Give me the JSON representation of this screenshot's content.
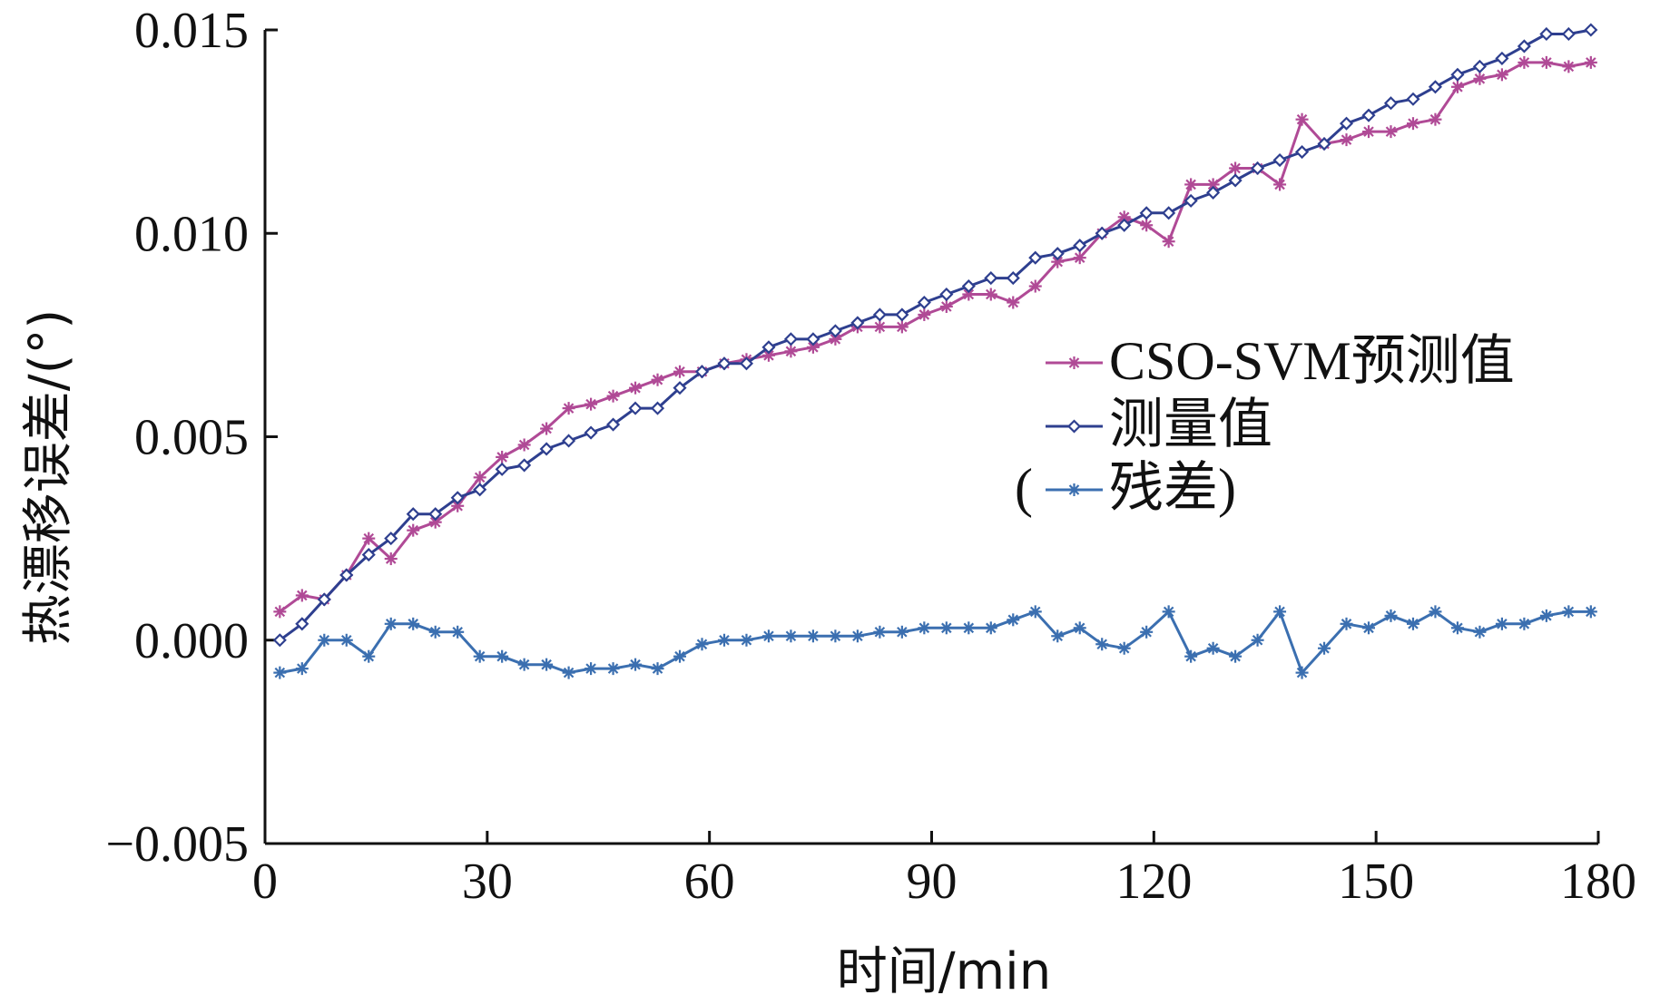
{
  "chart_data": {
    "type": "line",
    "title": "",
    "xlabel": "时间/min",
    "ylabel": "热漂移误差/(°)",
    "xlim": [
      0,
      180
    ],
    "ylim": [
      -0.005,
      0.015
    ],
    "xticks": [
      0,
      30,
      60,
      90,
      120,
      150,
      180
    ],
    "xtick_labels": [
      "0",
      "30",
      "60",
      "90",
      "120",
      "150",
      "180"
    ],
    "yticks": [
      -0.005,
      0.0,
      0.005,
      0.01,
      0.015
    ],
    "ytick_labels": [
      "−0.005",
      "0.000",
      "0.005",
      "0.010",
      "0.015"
    ],
    "grid": false,
    "legend_position": "right-middle",
    "x": [
      2.0,
      5.0,
      8.0,
      11.0,
      14.0,
      17.0,
      20.0,
      23.0,
      26.0,
      29.0,
      32.0,
      35.0,
      38.0,
      41.0,
      44.0,
      47.0,
      50.0,
      53.0,
      56.0,
      59.0,
      62.0,
      65.0,
      68.0,
      71.0,
      74.0,
      77.0,
      80.0,
      83.0,
      86.0,
      89.0,
      92.0,
      95.0,
      98.0,
      101.0,
      104.0,
      107.0,
      110.0,
      113.0,
      116.0,
      119.0,
      122.0,
      125.0,
      128.0,
      131.0,
      134.0,
      137.0,
      140.0,
      143.0,
      146.0,
      149.0,
      152.0,
      155.0,
      158.0,
      161.0,
      164.0,
      167.0,
      170.0,
      173.0,
      176.0,
      179.0
    ],
    "series": [
      {
        "name": "CSO-SVM预测值",
        "color": "#b04a96",
        "marker": "asterisk",
        "values": [
          0.0007,
          0.0011,
          0.001,
          0.0016,
          0.0025,
          0.002,
          0.0027,
          0.0029,
          0.0033,
          0.004,
          0.0045,
          0.0048,
          0.0052,
          0.0057,
          0.0058,
          0.006,
          0.0062,
          0.0064,
          0.0066,
          0.0066,
          0.0068,
          0.0069,
          0.007,
          0.0071,
          0.0072,
          0.0074,
          0.0077,
          0.0077,
          0.0077,
          0.008,
          0.0082,
          0.0085,
          0.0085,
          0.0083,
          0.0087,
          0.0093,
          0.0094,
          0.01,
          0.0104,
          0.0102,
          0.0098,
          0.0112,
          0.0112,
          0.0116,
          0.0116,
          0.0112,
          0.0128,
          0.0122,
          0.0123,
          0.0125,
          0.0125,
          0.0127,
          0.0128,
          0.0136,
          0.0138,
          0.0139,
          0.0142,
          0.0142,
          0.0141,
          0.0142
        ]
      },
      {
        "name": "测量值",
        "color": "#2e3f8f",
        "marker": "diamond",
        "values": [
          0.0,
          0.0004,
          0.001,
          0.0016,
          0.0021,
          0.0025,
          0.0031,
          0.0031,
          0.0035,
          0.0037,
          0.0042,
          0.0043,
          0.0047,
          0.0049,
          0.0051,
          0.0053,
          0.0057,
          0.0057,
          0.0062,
          0.0066,
          0.0068,
          0.0068,
          0.0072,
          0.0074,
          0.0074,
          0.0076,
          0.0078,
          0.008,
          0.008,
          0.0083,
          0.0085,
          0.0087,
          0.0089,
          0.0089,
          0.0094,
          0.0095,
          0.0097,
          0.01,
          0.0102,
          0.0105,
          0.0105,
          0.0108,
          0.011,
          0.0113,
          0.0116,
          0.0118,
          0.012,
          0.0122,
          0.0127,
          0.0129,
          0.0132,
          0.0133,
          0.0136,
          0.0139,
          0.0141,
          0.0143,
          0.0146,
          0.0149,
          0.0149,
          0.015
        ]
      },
      {
        "name": "残差",
        "legend_label": "(残差)",
        "color": "#3b6fb0",
        "marker": "asterisk",
        "values": [
          -0.0008,
          -0.0007,
          0.0,
          0.0,
          -0.0004,
          0.0004,
          0.0004,
          0.0002,
          0.0002,
          -0.0004,
          -0.0004,
          -0.0006,
          -0.0006,
          -0.0008,
          -0.0007,
          -0.0007,
          -0.0006,
          -0.0007,
          -0.0004,
          -0.0001,
          0.0,
          0.0,
          0.0001,
          0.0001,
          0.0001,
          0.0001,
          0.0001,
          0.0002,
          0.0002,
          0.0003,
          0.0003,
          0.0003,
          0.0003,
          0.0005,
          0.0007,
          0.0001,
          0.0003,
          -0.0001,
          -0.0002,
          0.0002,
          0.0007,
          -0.0004,
          -0.0002,
          -0.0004,
          0.0,
          0.0007,
          -0.0008,
          -0.0002,
          0.0004,
          0.0003,
          0.0006,
          0.0004,
          0.0007,
          0.0003,
          0.0002,
          0.0004,
          0.0004,
          0.0006,
          0.0007,
          0.0007
        ]
      }
    ]
  }
}
